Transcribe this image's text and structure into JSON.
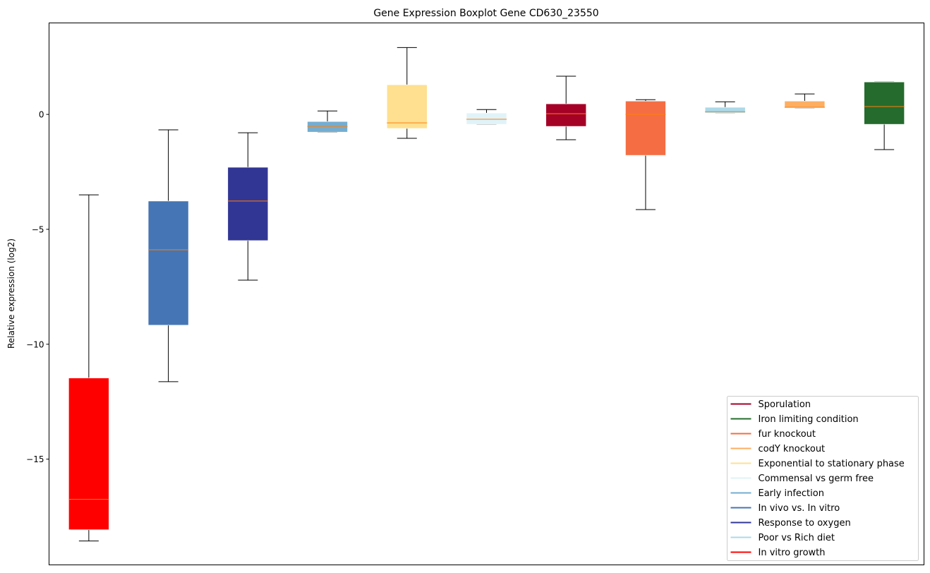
{
  "chart_data": {
    "type": "boxplot",
    "title": "Gene Expression Boxplot Gene CD630_23550",
    "xlabel": "",
    "ylabel": "Relative expression (log2)",
    "ylim": [
      -19.6,
      3.98
    ],
    "yticks": [
      0,
      -5,
      -10,
      -15
    ],
    "ytick_labels": [
      "0",
      "−5",
      "−10",
      "−15"
    ],
    "grid": false,
    "legend_position": "bottom-right",
    "median_color": "#ff7f0e",
    "boxes": [
      {
        "name": "In vitro growth",
        "color": "#ff0000",
        "whislo": -18.56,
        "q1": -18.07,
        "med": -16.75,
        "q3": -11.47,
        "whishi": -3.5
      },
      {
        "name": "In vivo vs. In vitro",
        "color": "#4575b4",
        "whislo": -11.63,
        "q1": -9.17,
        "med": -5.89,
        "q3": -3.77,
        "whishi": -0.67
      },
      {
        "name": "Response to oxygen",
        "color": "#313695",
        "whislo": -7.21,
        "q1": -5.49,
        "med": -3.77,
        "q3": -2.3,
        "whishi": -0.8
      },
      {
        "name": "Early infection",
        "color": "#74add1",
        "whislo": -0.77,
        "q1": -0.77,
        "med": -0.52,
        "q3": -0.31,
        "whishi": 0.15
      },
      {
        "name": "Exponential to stationary phase",
        "color": "#fee090",
        "whislo": -1.04,
        "q1": -0.61,
        "med": -0.37,
        "q3": 1.29,
        "whishi": 2.91
      },
      {
        "name": "Commensal vs germ free",
        "color": "#e0f3f8",
        "whislo": -0.43,
        "q1": -0.43,
        "med": -0.21,
        "q3": 0.06,
        "whishi": 0.21
      },
      {
        "name": "Sporulation",
        "color": "#a50026",
        "whislo": -1.1,
        "q1": -0.52,
        "med": 0.03,
        "q3": 0.46,
        "whishi": 1.66
      },
      {
        "name": "fur knockout",
        "color": "#f46d43",
        "whislo": -4.14,
        "q1": -1.78,
        "med": 0.0,
        "q3": 0.58,
        "whishi": 0.64
      },
      {
        "name": "Poor vs Rich diet",
        "color": "#abd9e9",
        "whislo": 0.06,
        "q1": 0.06,
        "med": 0.12,
        "q3": 0.31,
        "whishi": 0.55
      },
      {
        "name": "codY knockout",
        "color": "#fdae61",
        "whislo": 0.28,
        "q1": 0.28,
        "med": 0.31,
        "q3": 0.58,
        "whishi": 0.89
      },
      {
        "name": "Iron limiting condition",
        "color": "#246b2d",
        "whislo": -1.53,
        "q1": -0.43,
        "med": 0.34,
        "q3": 1.41,
        "whishi": 1.41
      }
    ],
    "legend": [
      {
        "label": "Sporulation",
        "color": "#a50026"
      },
      {
        "label": "Iron limiting condition",
        "color": "#246b2d"
      },
      {
        "label": "fur knockout",
        "color": "#f46d43"
      },
      {
        "label": "codY knockout",
        "color": "#fdae61"
      },
      {
        "label": "Exponential to stationary phase",
        "color": "#fee090"
      },
      {
        "label": "Commensal vs germ free",
        "color": "#e0f3f8"
      },
      {
        "label": "Early infection",
        "color": "#74add1"
      },
      {
        "label": "In vivo vs. In vitro",
        "color": "#4575b4"
      },
      {
        "label": "Response to oxygen",
        "color": "#313695"
      },
      {
        "label": "Poor vs Rich diet",
        "color": "#abd9e9"
      },
      {
        "label": "In vitro growth",
        "color": "#ff0000"
      }
    ]
  }
}
